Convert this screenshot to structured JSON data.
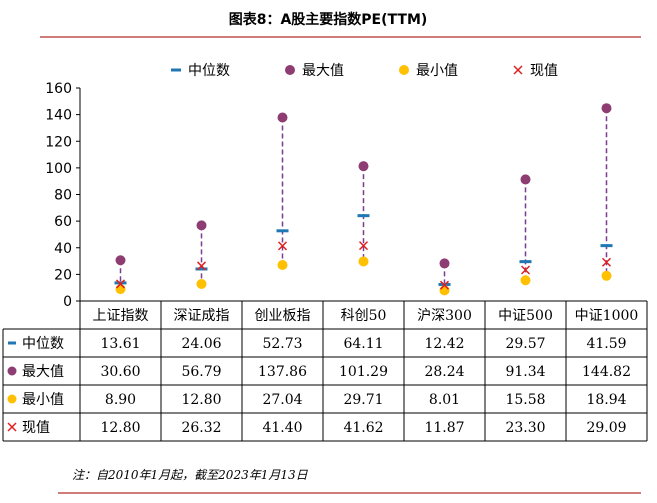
{
  "page": {
    "title": "图表8：A股主要指数PE(TTM)",
    "note": "注：自2010年1月起，截至2023年1月13日"
  },
  "colors": {
    "rule": "#C0504D",
    "median": "#1F77B4",
    "max": "#8E3D73",
    "min": "#FFC000",
    "current": "#E0201F",
    "range_line": "#7B3C96"
  },
  "chart_data": {
    "type": "scatter",
    "categories": [
      "上证指数",
      "深证成指",
      "创业板指",
      "科创50",
      "沪深300",
      "中证500",
      "中证1000"
    ],
    "series": [
      {
        "name": "中位数",
        "marker": "dash",
        "values": [
          13.61,
          24.06,
          52.73,
          64.11,
          12.42,
          29.57,
          41.59
        ]
      },
      {
        "name": "最大值",
        "marker": "circle",
        "values": [
          30.6,
          56.79,
          137.86,
          101.29,
          28.24,
          91.34,
          144.82
        ]
      },
      {
        "name": "最小值",
        "marker": "circle",
        "values": [
          8.9,
          12.8,
          27.04,
          29.71,
          8.01,
          15.58,
          18.94
        ]
      },
      {
        "name": "现值",
        "marker": "x",
        "values": [
          12.8,
          26.32,
          41.4,
          41.62,
          11.87,
          23.3,
          29.09
        ]
      }
    ],
    "table_values": {
      "中位数": [
        "13.61",
        "24.06",
        "52.73",
        "64.11",
        "12.42",
        "29.57",
        "41.59"
      ],
      "最大值": [
        "30.60",
        "56.79",
        "137.86",
        "101.29",
        "28.24",
        "91.34",
        "144.82"
      ],
      "最小值": [
        "8.90",
        "12.80",
        "27.04",
        "29.71",
        "8.01",
        "15.58",
        "18.94"
      ],
      "现值": [
        "12.80",
        "26.32",
        "41.40",
        "41.62",
        "11.87",
        "23.30",
        "29.09"
      ]
    },
    "ylim": [
      0,
      160
    ],
    "yticks": [
      "0",
      "20",
      "40",
      "60",
      "80",
      "100",
      "120",
      "140",
      "160"
    ],
    "legend_position": "top",
    "grid": false
  }
}
